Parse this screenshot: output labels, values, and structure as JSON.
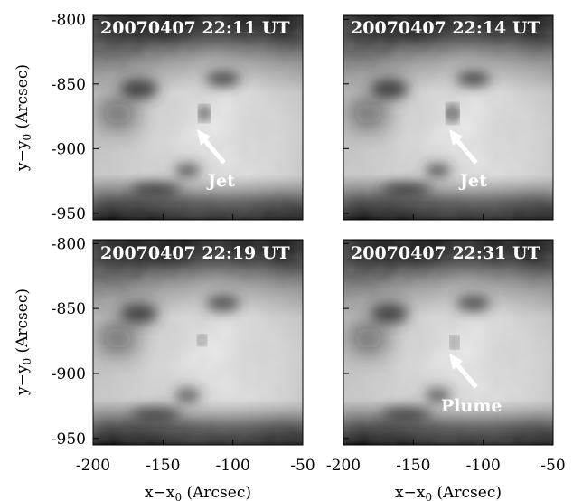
{
  "panels": [
    {
      "title": "20070407 22:11 UT",
      "annotation": "Jet"
    },
    {
      "title": "20070407 22:14 UT",
      "annotation": "Jet"
    },
    {
      "title": "20070407 22:19 UT",
      "annotation": ""
    },
    {
      "title": "20070407 22:31 UT",
      "annotation": "Plume"
    }
  ],
  "axes": {
    "x_ticks": [
      "-200",
      "-150",
      "-100",
      "-50"
    ],
    "x_tick_values": [
      -200,
      -150,
      -100,
      -50
    ],
    "y_ticks": [
      "-800",
      "-850",
      "-900",
      "-950"
    ],
    "y_tick_values": [
      -800,
      -850,
      -900,
      -950
    ],
    "xlim": [
      -200,
      -50
    ],
    "ylim": [
      -955,
      -797
    ],
    "xlabel": {
      "main": "x−x",
      "sub": "0",
      "rest": " (Arcsec)"
    },
    "ylabel": {
      "main": "y−y",
      "sub": "0",
      "rest": " (Arcsec)"
    }
  },
  "colors": {
    "image_light": "#d4d4d4",
    "image_dark": "#1e1e1e",
    "annotation_text": "#ffffff",
    "arrow": "#ffffff"
  },
  "icons": {
    "arrow": "arrow-up-left-icon"
  }
}
